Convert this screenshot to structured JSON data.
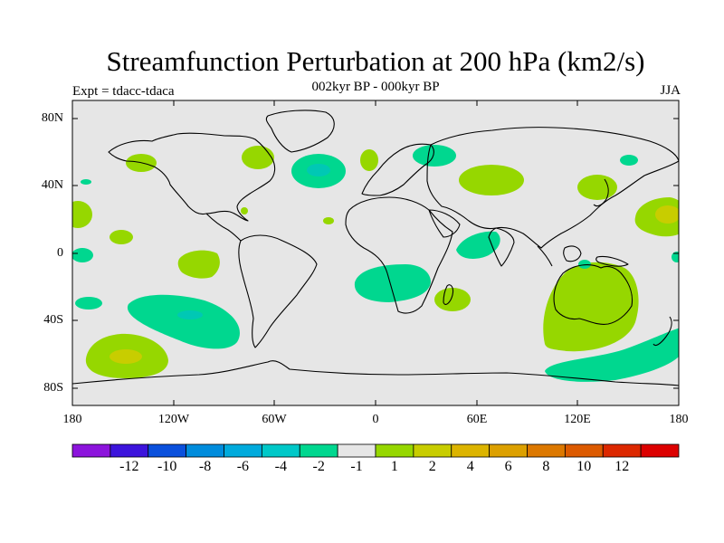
{
  "title": "Streamfunction Perturbation at 200 hPa (km2/s)",
  "subtitle": "002kyr BP - 000kyr BP",
  "left_label": "Expt = tdacc-tdaca",
  "right_label": "JJA",
  "colors": {
    "land_sea_bg": "#e6e6e6",
    "coast": "#000000",
    "neg1": "#00d78f",
    "neg2": "#00c8b4",
    "pos1": "#96d700",
    "pos2": "#c8cd00"
  },
  "chart_data": {
    "type": "contour-map",
    "variable": "Streamfunction Perturbation at 200 hPa",
    "units": "km2/s",
    "period": "002kyr BP - 000kyr BP",
    "season": "JJA",
    "experiment": "tdacc-tdaca",
    "lon_range": [
      -180,
      180
    ],
    "lat_range": [
      -90,
      90
    ],
    "x_ticks": [
      "180",
      "120W",
      "60W",
      "0",
      "60E",
      "120E",
      "180"
    ],
    "y_ticks": [
      "80N",
      "40N",
      "0",
      "40S",
      "80S"
    ],
    "colorbar": {
      "colors": [
        "#8c14dc",
        "#3c14dc",
        "#0a50dc",
        "#008cdc",
        "#00aadc",
        "#00c8c8",
        "#00d78f",
        "#e6e6e6",
        "#96d700",
        "#c8cd00",
        "#dcb400",
        "#dca000",
        "#dc7800",
        "#dc5a00",
        "#dc2800",
        "#dc0000"
      ],
      "labels": [
        "-12",
        "-10",
        "-8",
        "-6",
        "-4",
        "-2",
        "-1",
        "1",
        "2",
        "4",
        "6",
        "8",
        "10",
        "12"
      ]
    },
    "anomalies": [
      {
        "id": "australia-high",
        "lon": 110,
        "lat": -28,
        "value": 2,
        "peak": 2
      },
      {
        "id": "s-pacific-high",
        "lon": -155,
        "lat": -62,
        "value": 2,
        "peak": 4
      },
      {
        "id": "e-pacific-high",
        "lon": 170,
        "lat": 22,
        "value": 2,
        "peak": 4
      },
      {
        "id": "w-pacific-high",
        "lon": -178,
        "lat": 22,
        "value": 2
      },
      {
        "id": "subtrop-pacific-high",
        "lon": -144,
        "lat": 8,
        "value": 2
      },
      {
        "id": "tropical-pacific-high",
        "lon": -105,
        "lat": -2,
        "value": 2
      },
      {
        "id": "n-pacific-high",
        "lon": -165,
        "lat": 56,
        "value": 2
      },
      {
        "id": "canada-high",
        "lon": -70,
        "lat": 60,
        "value": 2
      },
      {
        "id": "n-atlantic-low",
        "lon": -35,
        "lat": 50,
        "value": -2,
        "peak": -4
      },
      {
        "id": "n-europe-low",
        "lon": 35,
        "lat": 60,
        "value": -1
      },
      {
        "id": "w-europe-high",
        "lon": -5,
        "lat": 58,
        "value": 2
      },
      {
        "id": "central-asia-high",
        "lon": 68,
        "lat": 46,
        "value": 2
      },
      {
        "id": "japan-high",
        "lon": 128,
        "lat": 40,
        "value": 2
      },
      {
        "id": "s-atlantic-low",
        "lon": 10,
        "lat": -14,
        "value": -1
      },
      {
        "id": "madagascar-high",
        "lon": 45,
        "lat": -28,
        "value": 2
      },
      {
        "id": "indian-ocean-low",
        "lon": 60,
        "lat": 6,
        "value": -1
      },
      {
        "id": "s-pacific-low",
        "lon": -108,
        "lat": -38,
        "value": -2,
        "peak": -4
      },
      {
        "id": "southern-ocean-low",
        "lon": 150,
        "lat": -62,
        "value": -1
      },
      {
        "id": "equatorial-pacific-low",
        "lon": -178,
        "lat": 1,
        "value": -1
      },
      {
        "id": "s-pacific-low-small",
        "lon": -173,
        "lat": -29,
        "value": -1
      },
      {
        "id": "alaska-low",
        "lon": -150,
        "lat": 58,
        "value": -1
      }
    ]
  }
}
